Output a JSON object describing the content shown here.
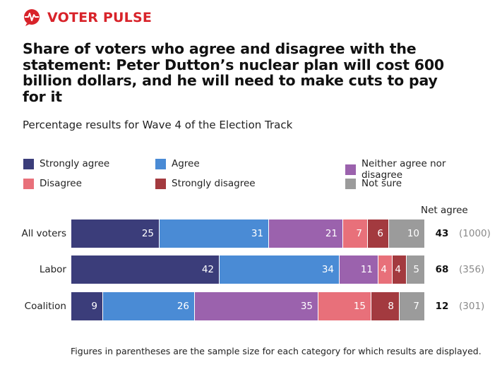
{
  "brand": {
    "name_part1": "VOTER",
    "name_part2": "PULSE",
    "accent": "#d8232a",
    "icon": "pulse-speech-bubble-icon"
  },
  "title": "Share of voters who agree and disagree with the statement: Peter Dutton’s nuclear plan will cost 600 billion dollars, and he will need to make cuts to pay for it",
  "subtitle": "Percentage results for Wave 4 of the Election Track",
  "net_header": "Net agree",
  "footnote": "Figures in parentheses are the sample size for each category for which results are displayed.",
  "chart_data": {
    "type": "bar",
    "orientation": "horizontal",
    "stacked": true,
    "categories": [
      "All voters",
      "Labor",
      "Coalition"
    ],
    "series": [
      {
        "name": "Strongly agree",
        "color": "#3b3d7a",
        "values": [
          25,
          42,
          9
        ]
      },
      {
        "name": "Agree",
        "color": "#4a8bd5",
        "values": [
          31,
          34,
          26
        ]
      },
      {
        "name": "Neither agree nor disagree",
        "color": "#9b62ad",
        "values": [
          21,
          11,
          35
        ]
      },
      {
        "name": "Disagree",
        "color": "#e8707a",
        "values": [
          7,
          4,
          15
        ]
      },
      {
        "name": "Strongly disagree",
        "color": "#a33a3f",
        "values": [
          6,
          4,
          8
        ]
      },
      {
        "name": "Not sure",
        "color": "#9b9b9b",
        "values": [
          10,
          5,
          7
        ]
      }
    ],
    "net_agree": [
      43,
      68,
      12
    ],
    "sample_size": [
      "(1000)",
      "(356)",
      "(301)"
    ],
    "legend_position": "top",
    "grid": false
  }
}
